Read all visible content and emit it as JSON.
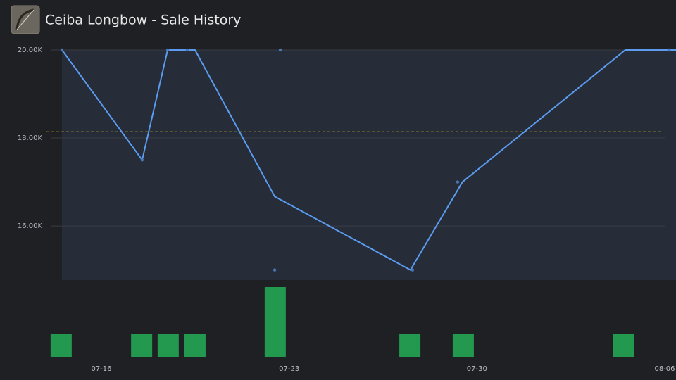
{
  "chart_data": {
    "type": "line",
    "title": "Ceiba Longbow - Sale History",
    "x": [
      14.53,
      17.52,
      18.47,
      19.49,
      22.46,
      27.52,
      29.46,
      35.53,
      37.42
    ],
    "values": [
      20000,
      17500,
      20000,
      20000,
      16670,
      15000,
      17000,
      20000,
      20000
    ],
    "color": "#5b9cf0",
    "points": {
      "x": [
        14.53,
        17.52,
        18.47,
        19.2,
        22.67,
        22.46,
        27.6,
        29.28,
        37.16
      ],
      "values": [
        20000,
        17500,
        20000,
        20000,
        20000,
        15000,
        15000,
        17000,
        20000
      ],
      "color": "#4a78b8"
    },
    "average": 18140,
    "average_color": "#e6c229",
    "volume": {
      "x": [
        14.5,
        17.5,
        18.49,
        19.49,
        22.48,
        27.5,
        29.49,
        35.47
      ],
      "values": [
        1,
        1,
        1,
        1,
        3,
        1,
        1,
        1
      ],
      "lim": [
        0,
        3
      ],
      "color": "#22994f"
    },
    "xlim": [
      14.53,
      37.42
    ],
    "xticks": [
      {
        "value": 16,
        "label": "07-16"
      },
      {
        "value": 23,
        "label": "07-23"
      },
      {
        "value": 30,
        "label": "07-30"
      },
      {
        "value": 37,
        "label": "08-06"
      }
    ],
    "ylim": [
      14770,
      20000
    ],
    "yticks": [
      {
        "value": 16000,
        "label": "16.00K"
      },
      {
        "value": 18000,
        "label": "18.00K"
      },
      {
        "value": 20000,
        "label": "20.00K"
      }
    ],
    "grid": true
  }
}
